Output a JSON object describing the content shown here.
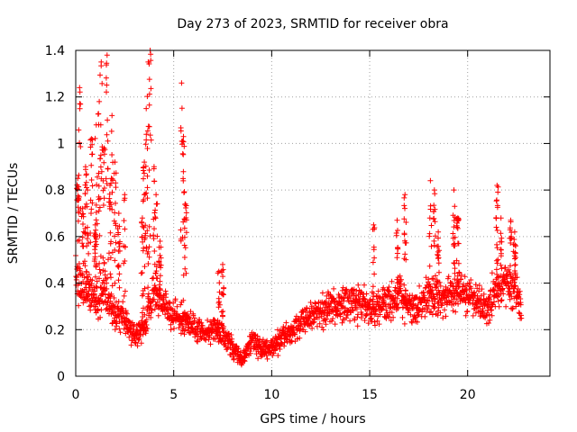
{
  "chart_data": {
    "type": "scatter",
    "title": "Day 273 of 2023, SRMTID for receiver obra",
    "xlabel": "GPS time / hours",
    "ylabel": "SRMTID / TECUs",
    "xlim": [
      0,
      24.2
    ],
    "ylim": [
      0,
      1.4
    ],
    "xticks": [
      0,
      5,
      10,
      15,
      20
    ],
    "xtick_labels": [
      "0",
      "5",
      "10",
      "15",
      "20"
    ],
    "yticks": [
      0,
      0.2,
      0.4,
      0.6,
      0.8,
      1.0,
      1.2,
      1.4
    ],
    "ytick_labels": [
      "0",
      "0.2",
      "0.4",
      "0.6",
      "0.8",
      "1",
      "1.2",
      "1.4"
    ],
    "grid": true,
    "marker": "+",
    "series": [
      {
        "name": "SRMTID",
        "color": "#ff0000",
        "baseline": [
          [
            0.0,
            0.42
          ],
          [
            0.5,
            0.38
          ],
          [
            1.0,
            0.33
          ],
          [
            1.5,
            0.36
          ],
          [
            2.0,
            0.27
          ],
          [
            2.5,
            0.24
          ],
          [
            3.0,
            0.17
          ],
          [
            3.5,
            0.22
          ],
          [
            4.0,
            0.36
          ],
          [
            4.5,
            0.3
          ],
          [
            5.0,
            0.26
          ],
          [
            5.5,
            0.24
          ],
          [
            6.0,
            0.22
          ],
          [
            6.5,
            0.18
          ],
          [
            7.0,
            0.2
          ],
          [
            7.5,
            0.18
          ],
          [
            8.0,
            0.13
          ],
          [
            8.5,
            0.07
          ],
          [
            9.0,
            0.16
          ],
          [
            9.5,
            0.11
          ],
          [
            10.0,
            0.12
          ],
          [
            10.5,
            0.16
          ],
          [
            11.0,
            0.18
          ],
          [
            11.5,
            0.23
          ],
          [
            12.0,
            0.26
          ],
          [
            12.5,
            0.28
          ],
          [
            13.0,
            0.3
          ],
          [
            13.5,
            0.29
          ],
          [
            14.0,
            0.32
          ],
          [
            14.5,
            0.31
          ],
          [
            15.0,
            0.3
          ],
          [
            15.5,
            0.29
          ],
          [
            16.0,
            0.33
          ],
          [
            16.5,
            0.35
          ],
          [
            17.0,
            0.3
          ],
          [
            17.5,
            0.31
          ],
          [
            18.0,
            0.34
          ],
          [
            18.5,
            0.33
          ],
          [
            19.0,
            0.35
          ],
          [
            19.5,
            0.36
          ],
          [
            20.0,
            0.36
          ],
          [
            20.5,
            0.32
          ],
          [
            21.0,
            0.3
          ],
          [
            21.5,
            0.38
          ],
          [
            22.0,
            0.4
          ],
          [
            22.5,
            0.36
          ],
          [
            22.75,
            0.3
          ]
        ],
        "spikes": [
          [
            0.1,
            0.85
          ],
          [
            0.2,
            1.24
          ],
          [
            0.35,
            0.72
          ],
          [
            0.5,
            0.9
          ],
          [
            0.6,
            0.8
          ],
          [
            0.8,
            1.02
          ],
          [
            1.0,
            0.65
          ],
          [
            1.05,
            1.08
          ],
          [
            1.2,
            1.18
          ],
          [
            1.3,
            1.35
          ],
          [
            1.45,
            0.98
          ],
          [
            1.6,
            1.38
          ],
          [
            1.75,
            0.82
          ],
          [
            1.85,
            1.12
          ],
          [
            2.0,
            0.92
          ],
          [
            2.2,
            0.7
          ],
          [
            2.5,
            0.78
          ],
          [
            3.4,
            0.68
          ],
          [
            3.5,
            0.92
          ],
          [
            3.6,
            1.15
          ],
          [
            3.7,
            1.35
          ],
          [
            3.8,
            1.4
          ],
          [
            4.0,
            0.9
          ],
          [
            4.1,
            0.78
          ],
          [
            4.3,
            0.58
          ],
          [
            5.4,
            1.26
          ],
          [
            5.5,
            1.03
          ],
          [
            5.6,
            0.74
          ],
          [
            7.3,
            0.45
          ],
          [
            7.5,
            0.48
          ],
          [
            15.2,
            0.65
          ],
          [
            16.4,
            0.67
          ],
          [
            16.8,
            0.78
          ],
          [
            18.1,
            0.84
          ],
          [
            18.3,
            0.8
          ],
          [
            18.5,
            0.62
          ],
          [
            19.3,
            0.8
          ],
          [
            19.5,
            0.68
          ],
          [
            21.5,
            0.82
          ],
          [
            21.7,
            0.68
          ],
          [
            22.2,
            0.67
          ],
          [
            22.4,
            0.62
          ]
        ]
      }
    ]
  }
}
